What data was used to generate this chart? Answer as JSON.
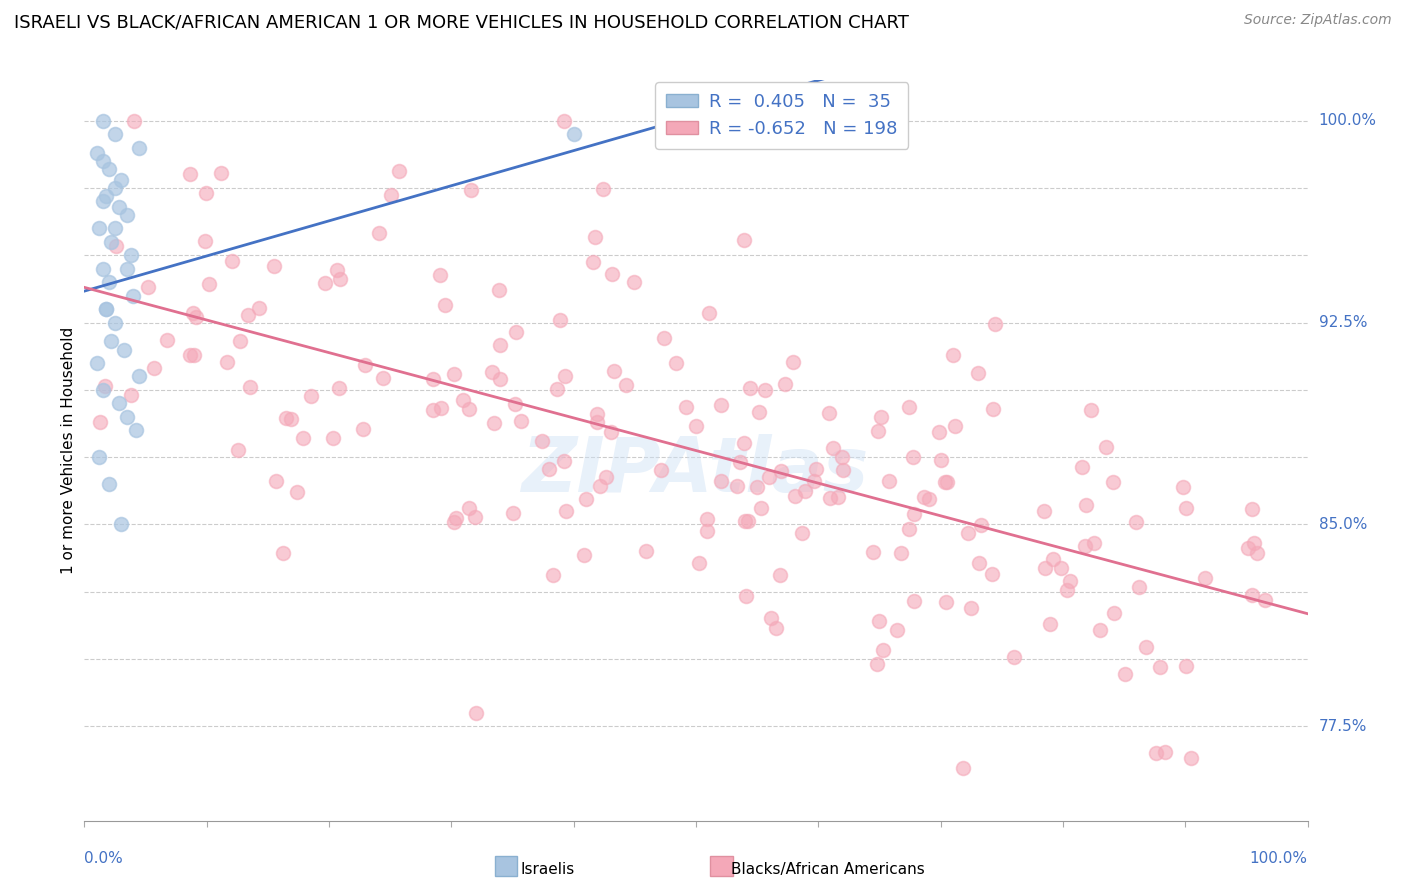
{
  "title": "ISRAELI VS BLACK/AFRICAN AMERICAN 1 OR MORE VEHICLES IN HOUSEHOLD CORRELATION CHART",
  "source": "Source: ZipAtlas.com",
  "ylabel": "1 or more Vehicles in Household",
  "watermark": "ZIPAtlas",
  "israeli_color": "#a8c4e0",
  "black_color": "#f4a8b8",
  "trend_blue": "#4472c4",
  "trend_pink": "#e07090",
  "xlim": [
    0,
    100
  ],
  "ylim": [
    74,
    101.5
  ],
  "ytick_positions": [
    77.5,
    80.0,
    82.5,
    85.0,
    87.5,
    90.0,
    92.5,
    95.0,
    97.5,
    100.0
  ],
  "ytick_labels_shown": {
    "77.5": "77.5%",
    "85.0": "85.0%",
    "92.5": "92.5%",
    "100.0": "100.0%"
  },
  "legend_entries": [
    {
      "label": "R =  0.405   N =  35",
      "color": "#a8c4e0"
    },
    {
      "label": "R = -0.652   N = 198",
      "color": "#f4a8b8"
    }
  ],
  "bottom_labels": [
    "Israelis",
    "Blacks/African Americans"
  ],
  "israeli_x": [
    1.5,
    2.5,
    4.5,
    1.0,
    1.5,
    2.0,
    3.0,
    2.5,
    1.8,
    2.8,
    3.5,
    1.2,
    2.2,
    3.8,
    1.5,
    2.0,
    4.0,
    1.8,
    2.5,
    3.2,
    1.0,
    1.5,
    2.8,
    3.5,
    4.2,
    1.2,
    2.0,
    3.0,
    40.0,
    1.5,
    2.5,
    3.5,
    1.8,
    2.2,
    4.5
  ],
  "israeli_y": [
    100.0,
    99.5,
    99.0,
    98.8,
    98.5,
    98.2,
    97.8,
    97.5,
    97.2,
    96.8,
    96.5,
    96.0,
    95.5,
    95.0,
    94.5,
    94.0,
    93.5,
    93.0,
    92.5,
    91.5,
    91.0,
    90.0,
    89.5,
    89.0,
    88.5,
    87.5,
    86.5,
    85.0,
    99.5,
    97.0,
    96.0,
    94.5,
    93.0,
    91.8,
    90.5
  ],
  "black_seed": 123
}
